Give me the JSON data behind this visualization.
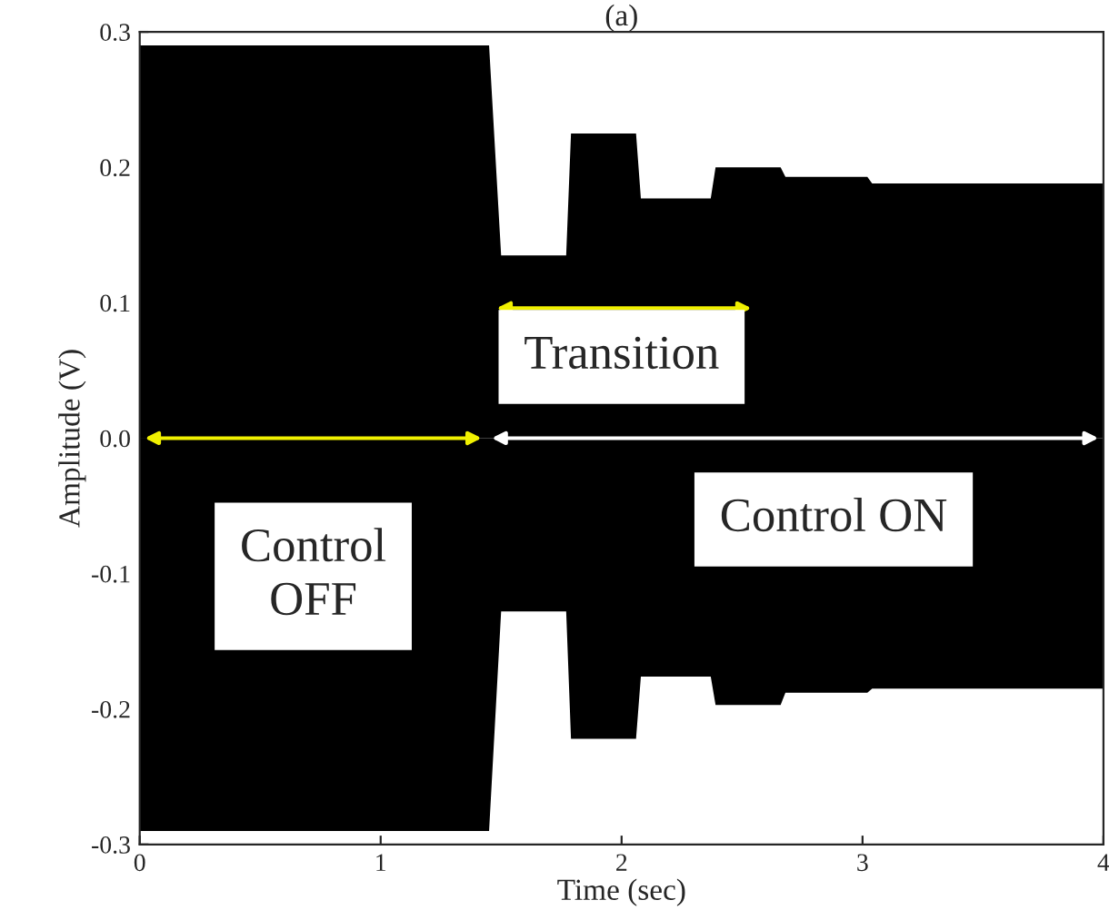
{
  "chart_data": {
    "type": "area",
    "title": "(a)",
    "xlabel": "Time (sec)",
    "ylabel": "Amplitude (V)",
    "x": [
      0,
      1.45,
      1.5,
      1.77,
      1.79,
      2.06,
      2.08,
      2.37,
      2.39,
      2.66,
      2.68,
      3.02,
      3.04,
      4
    ],
    "series": [
      {
        "color": "#000000",
        "values": [
          0.29,
          0.29,
          0.135,
          0.135,
          0.225,
          0.225,
          0.177,
          0.177,
          0.2,
          0.2,
          0.193,
          0.193,
          0.188,
          0.188
        ]
      },
      {
        "color": "#000000",
        "values": [
          -0.29,
          -0.29,
          -0.128,
          -0.128,
          -0.222,
          -0.222,
          -0.176,
          -0.176,
          -0.197,
          -0.197,
          -0.188,
          -0.188,
          -0.185,
          -0.185
        ]
      }
    ],
    "xlim": [
      0,
      4
    ],
    "ylim": [
      -0.3,
      0.3
    ],
    "xticks": [
      0,
      1,
      2,
      3,
      4
    ],
    "yticks": [
      -0.3,
      -0.2,
      -0.1,
      {
        "value": 0,
        "label": "0.0"
      },
      0.1,
      0.2,
      0.3
    ],
    "annotations": [
      "Transition",
      "Control\nOFF",
      "Control ON"
    ],
    "grid": false,
    "legend": false
  }
}
